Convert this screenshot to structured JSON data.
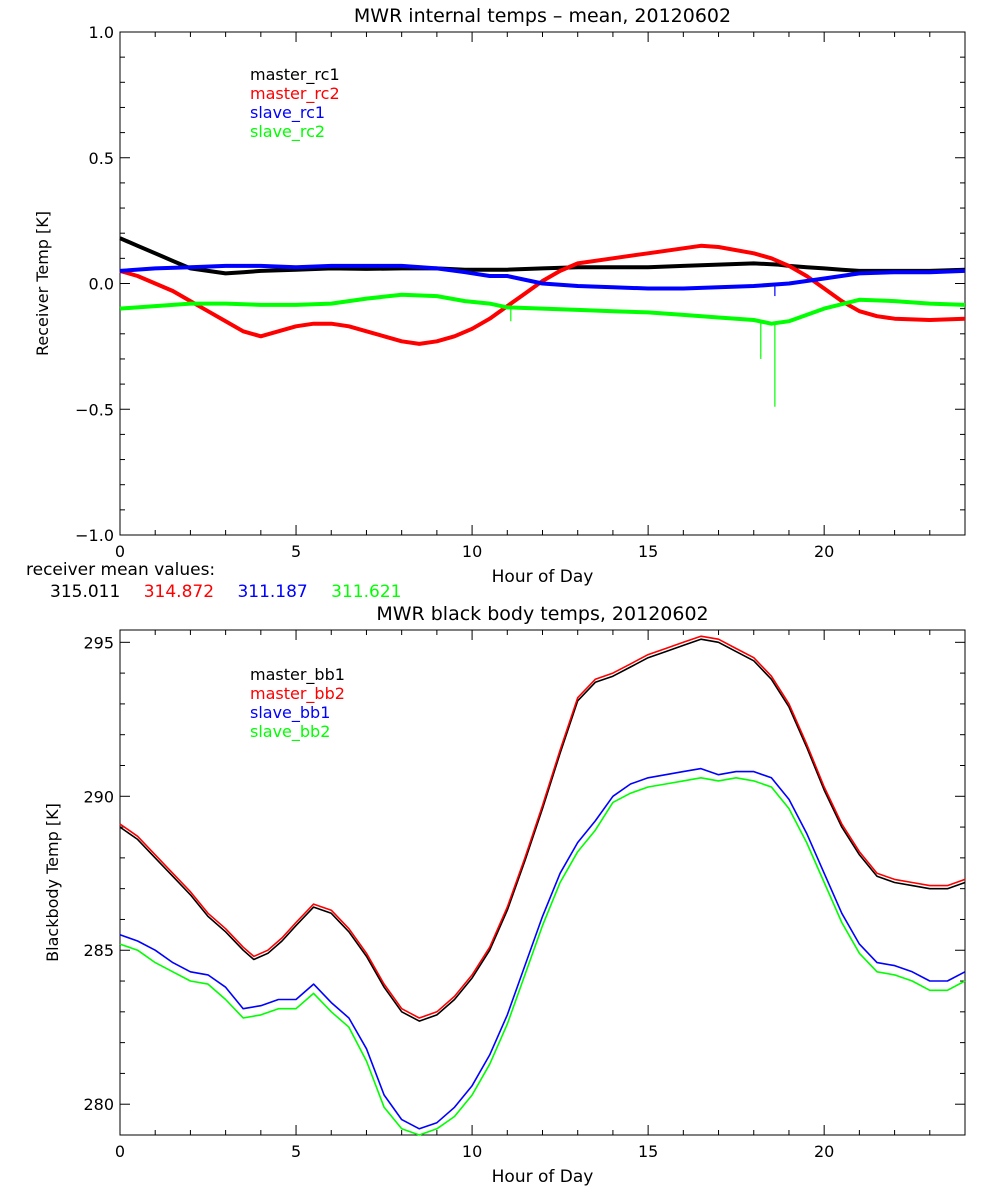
{
  "chart_data": [
    {
      "type": "line",
      "title": "MWR internal temps – mean, 20120602",
      "xlabel": "Hour of Day",
      "ylabel": "Receiver Temp [K]",
      "xlim": [
        0,
        24
      ],
      "ylim": [
        -1.0,
        1.0
      ],
      "xticks": [
        0,
        5,
        10,
        15,
        20
      ],
      "yticks": [
        -1.0,
        -0.5,
        0.0,
        0.5,
        1.0
      ],
      "ytick_labels": [
        "−1.0",
        "−0.5",
        "0.0",
        "0.5",
        "1.0"
      ],
      "legend_position": "top-left",
      "series": [
        {
          "name": "master_rc1",
          "color": "#000000",
          "x": [
            0,
            0.5,
            1,
            1.5,
            2,
            2.5,
            3,
            3.5,
            4,
            5,
            6,
            7,
            8,
            9,
            9.8,
            10.5,
            11,
            12,
            13,
            14,
            15,
            16,
            17,
            18,
            18.7,
            19,
            19.5,
            20,
            20.5,
            21,
            22,
            23,
            24
          ],
          "y": [
            0.18,
            0.15,
            0.12,
            0.09,
            0.06,
            0.05,
            0.04,
            0.045,
            0.05,
            0.055,
            0.06,
            0.058,
            0.06,
            0.06,
            0.055,
            0.055,
            0.055,
            0.06,
            0.065,
            0.065,
            0.065,
            0.07,
            0.075,
            0.08,
            0.075,
            0.07,
            0.065,
            0.06,
            0.055,
            0.05,
            0.05,
            0.05,
            0.055
          ]
        },
        {
          "name": "master_rc2",
          "color": "#ff0000",
          "x": [
            0,
            0.5,
            1,
            1.5,
            2,
            2.5,
            3,
            3.5,
            4,
            4.5,
            5,
            5.5,
            6,
            6.5,
            7,
            7.5,
            8,
            8.5,
            9,
            9.5,
            10,
            10.5,
            11,
            11.5,
            12,
            12.5,
            13,
            14,
            15,
            16,
            16.5,
            17,
            18,
            18.5,
            19,
            19.5,
            20,
            20.5,
            21,
            21.5,
            22,
            23,
            24
          ],
          "y": [
            0.05,
            0.03,
            0.0,
            -0.03,
            -0.07,
            -0.11,
            -0.15,
            -0.19,
            -0.21,
            -0.19,
            -0.17,
            -0.16,
            -0.16,
            -0.17,
            -0.19,
            -0.21,
            -0.23,
            -0.24,
            -0.23,
            -0.21,
            -0.18,
            -0.14,
            -0.09,
            -0.04,
            0.01,
            0.05,
            0.08,
            0.1,
            0.12,
            0.14,
            0.15,
            0.145,
            0.12,
            0.1,
            0.07,
            0.03,
            -0.02,
            -0.07,
            -0.11,
            -0.13,
            -0.14,
            -0.145,
            -0.14
          ]
        },
        {
          "name": "slave_rc1",
          "color": "#0000ff",
          "x": [
            0,
            1,
            2,
            3,
            4,
            5,
            6,
            7,
            8,
            9,
            9.8,
            10.5,
            11,
            12,
            13,
            14,
            15,
            16,
            17,
            18,
            18.5,
            19,
            20,
            21,
            22,
            23,
            24
          ],
          "y": [
            0.05,
            0.06,
            0.065,
            0.07,
            0.07,
            0.065,
            0.07,
            0.07,
            0.07,
            0.06,
            0.045,
            0.03,
            0.03,
            0.0,
            -0.01,
            -0.015,
            -0.02,
            -0.02,
            -0.015,
            -0.01,
            -0.005,
            0.0,
            0.02,
            0.04,
            0.045,
            0.045,
            0.05
          ]
        },
        {
          "name": "slave_rc2",
          "color": "#00ff00",
          "x": [
            0,
            1,
            2,
            3,
            4,
            5,
            6,
            7,
            8,
            9,
            9.8,
            10.5,
            11,
            12,
            13,
            14,
            15,
            16,
            17,
            18,
            18.5,
            19,
            20,
            21,
            22,
            23,
            24
          ],
          "y": [
            -0.1,
            -0.09,
            -0.08,
            -0.08,
            -0.085,
            -0.085,
            -0.08,
            -0.06,
            -0.045,
            -0.05,
            -0.07,
            -0.08,
            -0.095,
            -0.1,
            -0.105,
            -0.11,
            -0.115,
            -0.125,
            -0.135,
            -0.145,
            -0.16,
            -0.15,
            -0.1,
            -0.065,
            -0.07,
            -0.08,
            -0.085
          ]
        }
      ],
      "spikes": [
        {
          "series": "slave_rc2",
          "x": 18.2,
          "y": -0.3
        },
        {
          "series": "slave_rc2",
          "x": 18.6,
          "y": -0.49
        },
        {
          "series": "slave_rc2",
          "x": 11.1,
          "y": -0.15
        },
        {
          "series": "slave_rc1",
          "x": 18.6,
          "y": -0.05
        }
      ]
    },
    {
      "type": "line",
      "title": "MWR black body temps, 20120602",
      "xlabel": "Hour of Day",
      "ylabel": "Blackbody Temp [K]",
      "xlim": [
        0,
        24
      ],
      "ylim": [
        279,
        295.4
      ],
      "xticks": [
        0,
        5,
        10,
        15,
        20
      ],
      "yticks": [
        280,
        285,
        290,
        295
      ],
      "ytick_labels": [
        "280",
        "285",
        "290",
        "295"
      ],
      "legend_position": "top-left",
      "series": [
        {
          "name": "master_bb1",
          "color": "#000000",
          "x": [
            0,
            0.5,
            1,
            1.5,
            2,
            2.5,
            3,
            3.5,
            3.8,
            4.2,
            4.6,
            5,
            5.5,
            6,
            6.5,
            7,
            7.5,
            8,
            8.5,
            9,
            9.5,
            10,
            10.5,
            11,
            11.5,
            12,
            12.5,
            13,
            13.5,
            14,
            14.5,
            15,
            15.5,
            16,
            16.5,
            17,
            17.5,
            18,
            18.5,
            19,
            19.5,
            20,
            20.5,
            21,
            21.5,
            22,
            22.5,
            23,
            23.5,
            24
          ],
          "y": [
            289.0,
            288.6,
            288.0,
            287.4,
            286.8,
            286.1,
            285.6,
            285.0,
            284.7,
            284.9,
            285.3,
            285.8,
            286.4,
            286.2,
            285.6,
            284.8,
            283.8,
            283.0,
            282.7,
            282.9,
            283.4,
            284.1,
            285.0,
            286.3,
            287.9,
            289.6,
            291.4,
            293.1,
            293.7,
            293.9,
            294.2,
            294.5,
            294.7,
            294.9,
            295.1,
            295.0,
            294.7,
            294.4,
            293.8,
            292.9,
            291.6,
            290.2,
            289.0,
            288.1,
            287.4,
            287.2,
            287.1,
            287.0,
            287.0,
            287.2
          ]
        },
        {
          "name": "master_bb2",
          "color": "#ff0000",
          "x": [
            0,
            0.5,
            1,
            1.5,
            2,
            2.5,
            3,
            3.5,
            3.8,
            4.2,
            4.6,
            5,
            5.5,
            6,
            6.5,
            7,
            7.5,
            8,
            8.5,
            9,
            9.5,
            10,
            10.5,
            11,
            11.5,
            12,
            12.5,
            13,
            13.5,
            14,
            14.5,
            15,
            15.5,
            16,
            16.5,
            17,
            17.5,
            18,
            18.5,
            19,
            19.5,
            20,
            20.5,
            21,
            21.5,
            22,
            22.5,
            23,
            23.5,
            24
          ],
          "y": [
            289.1,
            288.7,
            288.1,
            287.5,
            286.9,
            286.2,
            285.7,
            285.1,
            284.8,
            285.0,
            285.4,
            285.9,
            286.5,
            286.3,
            285.7,
            284.9,
            283.9,
            283.1,
            282.8,
            283.0,
            283.5,
            284.2,
            285.1,
            286.4,
            288.0,
            289.7,
            291.5,
            293.2,
            293.8,
            294.0,
            294.3,
            294.6,
            294.8,
            295.0,
            295.2,
            295.1,
            294.8,
            294.5,
            293.9,
            293.0,
            291.7,
            290.3,
            289.1,
            288.2,
            287.5,
            287.3,
            287.2,
            287.1,
            287.1,
            287.3
          ]
        },
        {
          "name": "slave_bb1",
          "color": "#0000ff",
          "x": [
            0,
            0.5,
            1,
            1.5,
            2,
            2.5,
            3,
            3.5,
            4,
            4.5,
            5,
            5.5,
            6,
            6.5,
            7,
            7.5,
            8,
            8.5,
            9,
            9.5,
            10,
            10.5,
            11,
            11.5,
            12,
            12.5,
            13,
            13.5,
            14,
            14.5,
            15,
            15.5,
            16,
            16.5,
            17,
            17.5,
            18,
            18.5,
            19,
            19.5,
            20,
            20.5,
            21,
            21.5,
            22,
            22.5,
            23,
            23.5,
            24
          ],
          "y": [
            285.5,
            285.3,
            285.0,
            284.6,
            284.3,
            284.2,
            283.8,
            283.1,
            283.2,
            283.4,
            283.4,
            283.9,
            283.3,
            282.8,
            281.8,
            280.3,
            279.5,
            279.2,
            279.4,
            279.9,
            280.6,
            281.6,
            282.9,
            284.5,
            286.1,
            287.5,
            288.5,
            289.2,
            290.0,
            290.4,
            290.6,
            290.7,
            290.8,
            290.9,
            290.7,
            290.8,
            290.8,
            290.6,
            289.9,
            288.8,
            287.5,
            286.2,
            285.2,
            284.6,
            284.5,
            284.3,
            284.0,
            284.0,
            284.3
          ]
        },
        {
          "name": "slave_bb2",
          "color": "#00ff00",
          "x": [
            0,
            0.5,
            1,
            1.5,
            2,
            2.5,
            3,
            3.5,
            4,
            4.5,
            5,
            5.5,
            6,
            6.5,
            7,
            7.5,
            8,
            8.5,
            9,
            9.5,
            10,
            10.5,
            11,
            11.5,
            12,
            12.5,
            13,
            13.5,
            14,
            14.5,
            15,
            15.5,
            16,
            16.5,
            17,
            17.5,
            18,
            18.5,
            19,
            19.5,
            20,
            20.5,
            21,
            21.5,
            22,
            22.5,
            23,
            23.5,
            24
          ],
          "y": [
            285.2,
            285.0,
            284.6,
            284.3,
            284.0,
            283.9,
            283.4,
            282.8,
            282.9,
            283.1,
            283.1,
            283.6,
            283.0,
            282.5,
            281.4,
            279.9,
            279.2,
            279.0,
            279.2,
            279.6,
            280.3,
            281.3,
            282.6,
            284.2,
            285.8,
            287.2,
            288.2,
            288.9,
            289.8,
            290.1,
            290.3,
            290.4,
            290.5,
            290.6,
            290.5,
            290.6,
            290.5,
            290.3,
            289.6,
            288.5,
            287.2,
            285.9,
            284.9,
            284.3,
            284.2,
            284.0,
            283.7,
            283.7,
            284.0
          ]
        }
      ]
    }
  ],
  "receiver_means": {
    "label": "receiver mean values:",
    "values": [
      {
        "text": "315.011",
        "color": "#000000"
      },
      {
        "text": "314.872",
        "color": "#ff0000"
      },
      {
        "text": "311.187",
        "color": "#0000ff"
      },
      {
        "text": "311.621",
        "color": "#00ff00"
      }
    ]
  }
}
